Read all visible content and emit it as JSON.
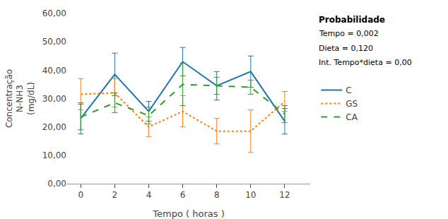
{
  "chart_data": {
    "type": "line",
    "xlabel": "Tempo ( horas )",
    "ylabel": "Concentração\nN-NH3\n(mg/dL)",
    "x": [
      0,
      2,
      4,
      6,
      8,
      10,
      12
    ],
    "series": [
      {
        "name": "C",
        "values": [
          23.0,
          38.5,
          25.5,
          43.0,
          34.5,
          39.5,
          22.0
        ],
        "errors": [
          5.5,
          7.5,
          3.5,
          5.0,
          5.0,
          5.5,
          4.5
        ],
        "line_style": "solid"
      },
      {
        "name": "GS",
        "values": [
          31.5,
          32.0,
          20.0,
          25.5,
          18.5,
          18.5,
          29.0
        ],
        "errors": [
          5.5,
          5.0,
          3.5,
          5.5,
          4.5,
          7.5,
          3.5
        ],
        "line_style": "dotted"
      },
      {
        "name": "CA",
        "values": [
          23.5,
          28.5,
          24.0,
          35.0,
          34.5,
          34.0,
          24.5
        ],
        "errors": [
          4.5,
          3.5,
          3.0,
          7.5,
          3.0,
          2.5,
          3.0
        ],
        "line_style": "dashed"
      }
    ],
    "xlim": [
      -0.8,
      13.5
    ],
    "xticks": [
      0,
      2,
      4,
      6,
      8,
      10,
      12
    ],
    "ylim": [
      0,
      60
    ],
    "yticks": [
      {
        "value": 0,
        "label": "0,00"
      },
      {
        "value": 10,
        "label": "10,00"
      },
      {
        "value": 20,
        "label": "20,00"
      },
      {
        "value": 30,
        "label": "30,00"
      },
      {
        "value": 40,
        "label": "40,00"
      },
      {
        "value": 50,
        "label": "50,00"
      },
      {
        "value": 60,
        "label": "60,00"
      }
    ],
    "annotations": [
      "Probabilidade",
      "Tempo = 0,002",
      "Dieta = 0,120",
      "Int. Tempo*dieta = 0,00"
    ],
    "grid": false,
    "legend": "right"
  }
}
